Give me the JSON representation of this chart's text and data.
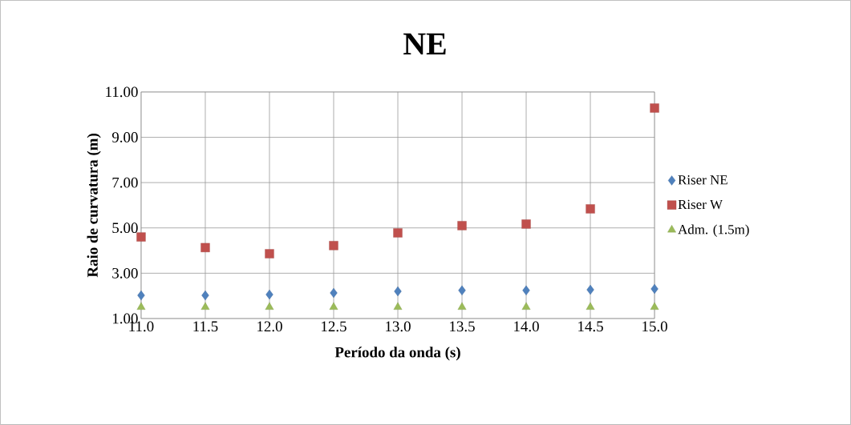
{
  "chart_data": {
    "type": "scatter",
    "title": "NE",
    "xlabel": "Período da onda (s)",
    "ylabel": "Raio de curvatura (m)",
    "x": [
      11.0,
      11.5,
      12.0,
      12.5,
      13.0,
      13.5,
      14.0,
      14.5,
      15.0
    ],
    "series": [
      {
        "name": "Riser NE",
        "color": "#4f81bd",
        "marker": "diamond",
        "values": [
          2.02,
          2.02,
          2.06,
          2.13,
          2.2,
          2.24,
          2.24,
          2.27,
          2.31
        ]
      },
      {
        "name": "Riser W",
        "color": "#c0504d",
        "marker": "square",
        "values": [
          4.6,
          4.13,
          3.86,
          4.22,
          4.78,
          5.1,
          5.17,
          5.84,
          10.29
        ]
      },
      {
        "name": "Adm. (1.5m)",
        "color": "#9bbb59",
        "marker": "triangle",
        "values": [
          1.5,
          1.5,
          1.5,
          1.5,
          1.5,
          1.5,
          1.5,
          1.5,
          1.5
        ]
      }
    ],
    "xlim": [
      11.0,
      15.0
    ],
    "xticks": [
      {
        "value": 11.0,
        "label": "11.0"
      },
      {
        "value": 11.5,
        "label": "11.5"
      },
      {
        "value": 12.0,
        "label": "12.0"
      },
      {
        "value": 12.5,
        "label": "12.5"
      },
      {
        "value": 13.0,
        "label": "13.0"
      },
      {
        "value": 13.5,
        "label": "13.5"
      },
      {
        "value": 14.0,
        "label": "14.0"
      },
      {
        "value": 14.5,
        "label": "14.5"
      },
      {
        "value": 15.0,
        "label": "15.0"
      }
    ],
    "ylim": [
      1.0,
      11.0
    ],
    "yticks": [
      {
        "value": 1.0,
        "label": "1.00"
      },
      {
        "value": 3.0,
        "label": "3.00"
      },
      {
        "value": 5.0,
        "label": "5.00"
      },
      {
        "value": 7.0,
        "label": "7.00"
      },
      {
        "value": 9.0,
        "label": "9.00"
      },
      {
        "value": 11.0,
        "label": "11.00"
      }
    ],
    "grid": true,
    "legend": "right"
  }
}
